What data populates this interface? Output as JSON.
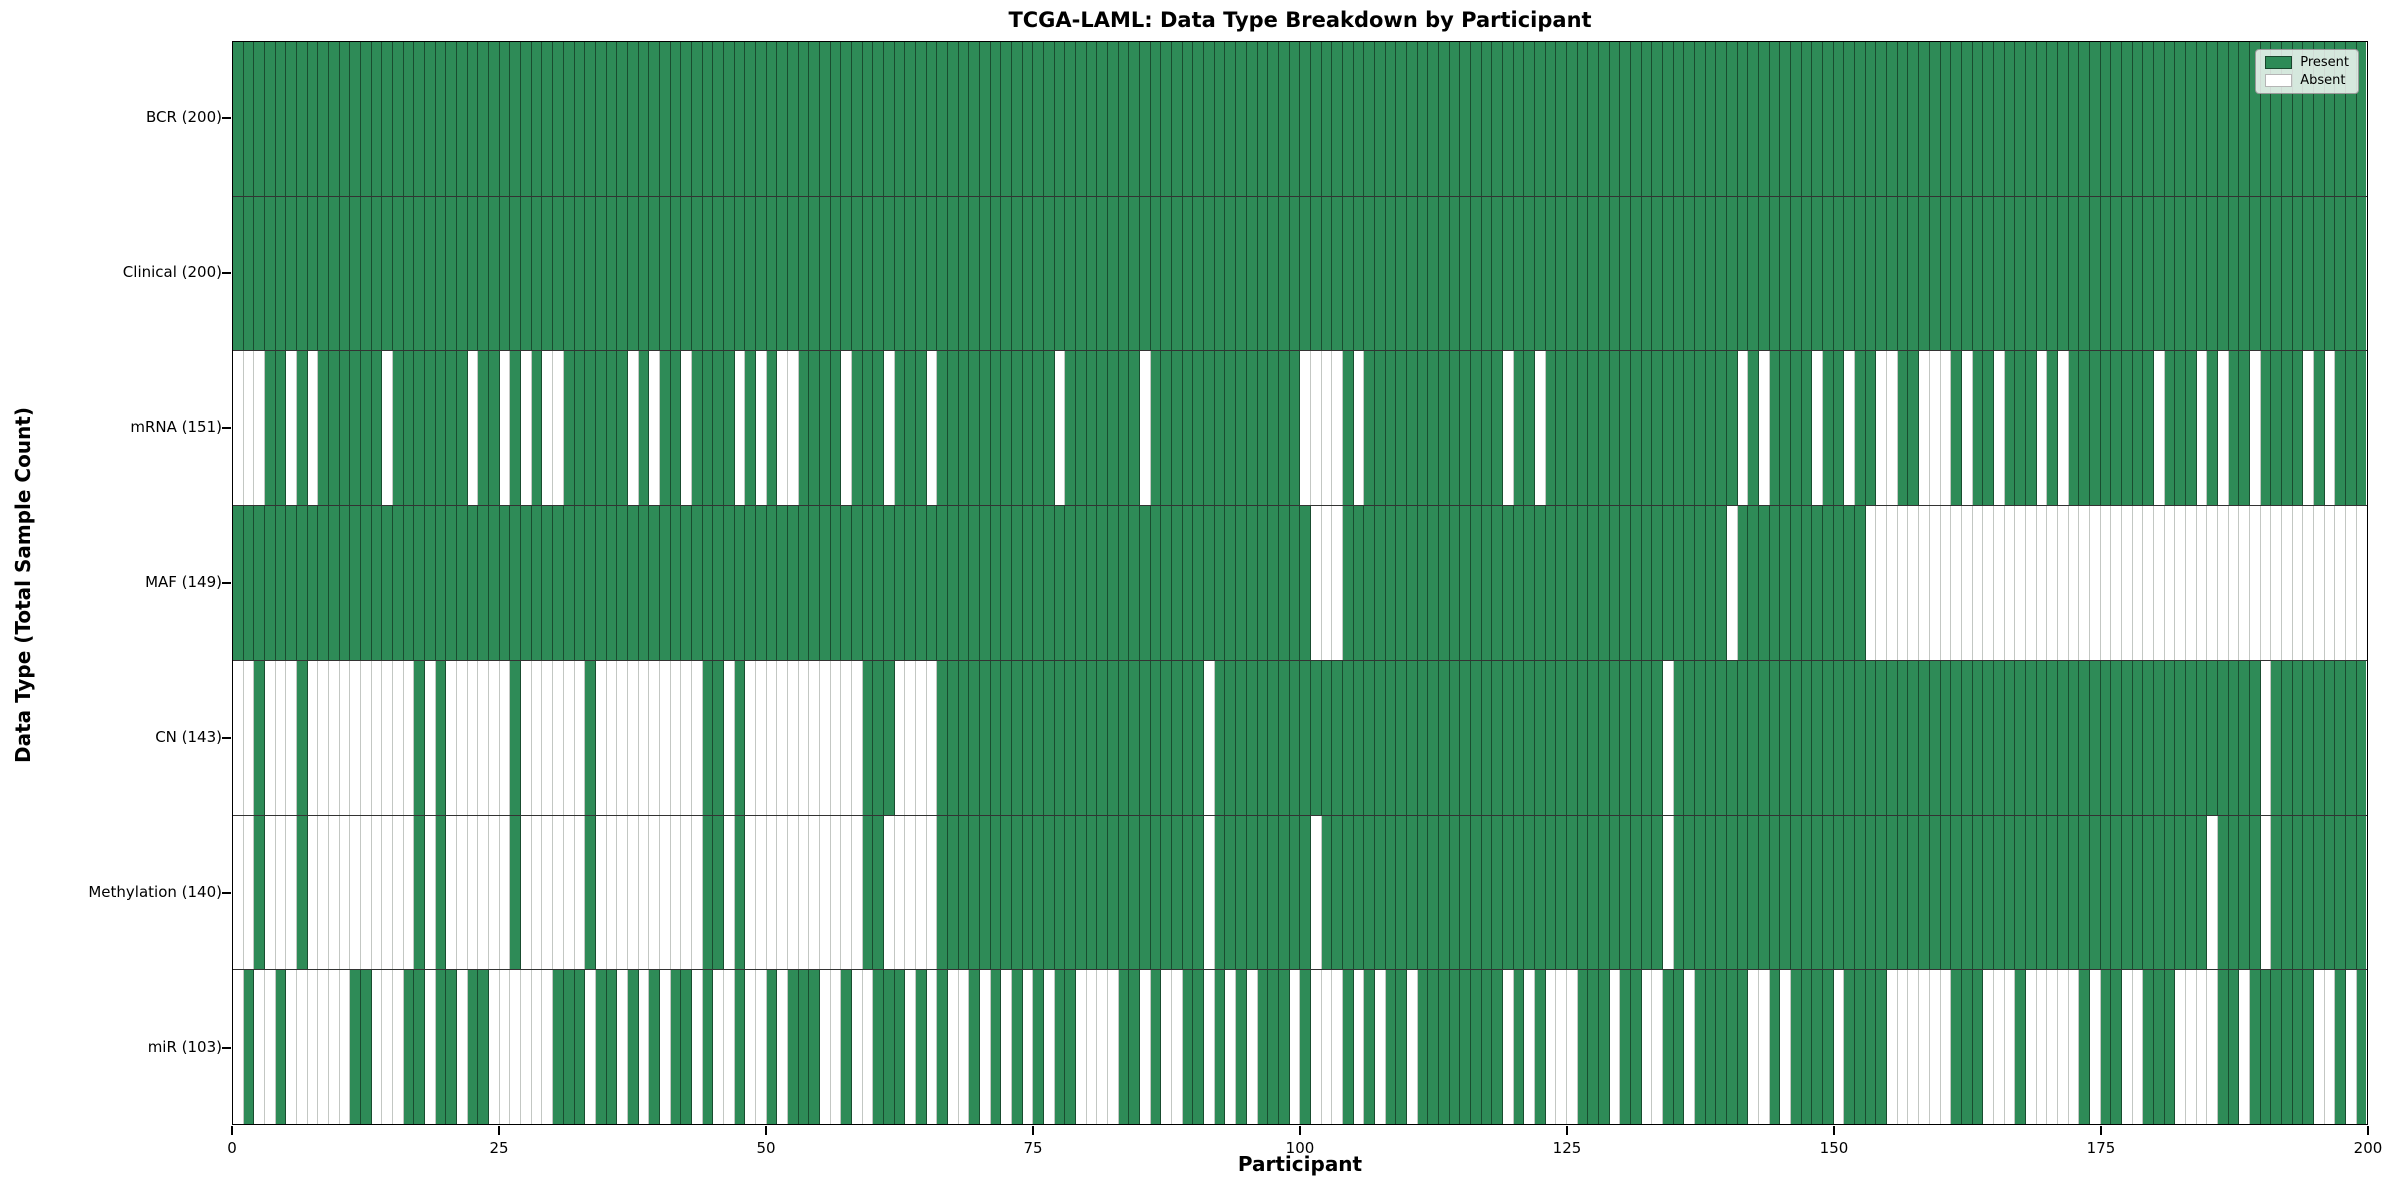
{
  "chart_data": {
    "type": "heatmap",
    "title": "TCGA-LAML: Data Type Breakdown by Participant",
    "xlabel": "Participant",
    "ylabel": "Data Type (Total Sample Count)",
    "x_ticks": [
      0,
      25,
      50,
      75,
      100,
      125,
      150,
      175,
      200
    ],
    "x_range": [
      0,
      200
    ],
    "n_participants": 200,
    "grid": "cell-edges",
    "legend": {
      "position": "upper right",
      "present_label": "Present",
      "absent_label": "Absent"
    },
    "colors": {
      "present": "#2e8b57",
      "absent": "#ffffff"
    },
    "rows": [
      {
        "label": "BCR (200)",
        "name": "BCR",
        "present_count": 200,
        "absent_participants": []
      },
      {
        "label": "Clinical (200)",
        "name": "Clinical",
        "present_count": 200,
        "absent_participants": []
      },
      {
        "label": "mRNA (151)",
        "name": "mRNA",
        "present_count": 151,
        "absent_participants": [
          0,
          1,
          2,
          5,
          7,
          14,
          22,
          25,
          27,
          29,
          30,
          37,
          39,
          42,
          47,
          49,
          51,
          52,
          57,
          61,
          65,
          77,
          85,
          100,
          101,
          102,
          103,
          105,
          119,
          122,
          141,
          143,
          148,
          151,
          154,
          155,
          158,
          159,
          160,
          162,
          165,
          169,
          171,
          180,
          184,
          186,
          189,
          194,
          196
        ]
      },
      {
        "label": "MAF (149)",
        "name": "MAF",
        "present_count": 149,
        "absent_participants": [
          101,
          102,
          103,
          140,
          153,
          154,
          155,
          156,
          157,
          158,
          159,
          160,
          161,
          162,
          163,
          164,
          165,
          166,
          167,
          168,
          169,
          170,
          171,
          172,
          173,
          174,
          175,
          176,
          177,
          178,
          179,
          180,
          181,
          182,
          183,
          184,
          185,
          186,
          187,
          188,
          189,
          190,
          191,
          192,
          193,
          194,
          195,
          196,
          197,
          198,
          199
        ]
      },
      {
        "label": "CN (143)",
        "name": "CN",
        "present_count": 143,
        "absent_participants": [
          0,
          1,
          3,
          4,
          5,
          7,
          8,
          9,
          10,
          11,
          12,
          13,
          14,
          15,
          16,
          18,
          20,
          21,
          22,
          23,
          24,
          25,
          27,
          28,
          29,
          30,
          31,
          32,
          34,
          35,
          36,
          37,
          38,
          39,
          40,
          41,
          42,
          43,
          46,
          48,
          49,
          50,
          51,
          52,
          53,
          54,
          55,
          56,
          57,
          58,
          62,
          63,
          64,
          65,
          91,
          134,
          190
        ]
      },
      {
        "label": "Methylation (140)",
        "name": "Methylation",
        "present_count": 140,
        "absent_participants": [
          0,
          1,
          3,
          4,
          5,
          7,
          8,
          9,
          10,
          11,
          12,
          13,
          14,
          15,
          16,
          18,
          20,
          21,
          22,
          23,
          24,
          25,
          27,
          28,
          29,
          30,
          31,
          32,
          34,
          35,
          36,
          37,
          38,
          39,
          40,
          41,
          42,
          43,
          46,
          48,
          49,
          50,
          51,
          52,
          53,
          54,
          55,
          56,
          57,
          58,
          61,
          62,
          63,
          64,
          65,
          91,
          101,
          134,
          185,
          190
        ]
      },
      {
        "label": "miR (103)",
        "name": "miR",
        "present_count": 103,
        "absent_participants": [
          0,
          2,
          3,
          5,
          6,
          7,
          8,
          9,
          10,
          13,
          14,
          15,
          18,
          21,
          24,
          25,
          26,
          27,
          28,
          29,
          33,
          36,
          38,
          40,
          43,
          45,
          46,
          48,
          49,
          51,
          55,
          56,
          58,
          59,
          63,
          65,
          67,
          68,
          70,
          72,
          74,
          76,
          79,
          80,
          81,
          82,
          85,
          87,
          88,
          91,
          93,
          95,
          99,
          101,
          102,
          103,
          105,
          107,
          110,
          119,
          121,
          123,
          124,
          125,
          129,
          132,
          133,
          136,
          142,
          143,
          145,
          150,
          155,
          156,
          157,
          158,
          159,
          160,
          164,
          165,
          166,
          168,
          169,
          170,
          171,
          172,
          174,
          177,
          178,
          182,
          183,
          184,
          185,
          188,
          195,
          196,
          198
        ]
      }
    ]
  }
}
